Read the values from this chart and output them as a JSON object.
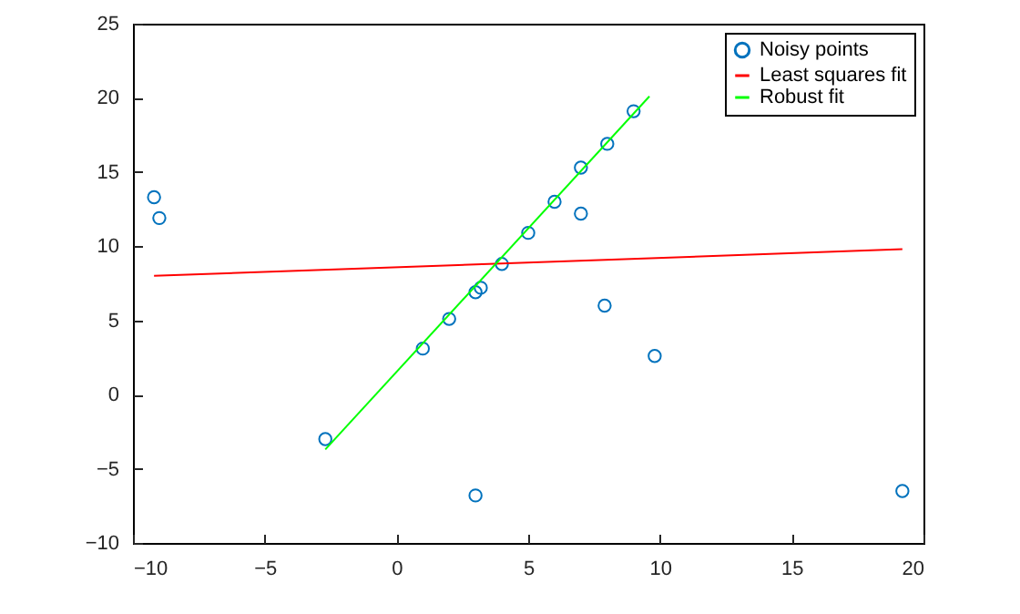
{
  "chart_data": {
    "type": "scatter",
    "xlim": [
      -10,
      20
    ],
    "ylim": [
      -10,
      25
    ],
    "xticks": [
      -10,
      -5,
      0,
      5,
      10,
      15,
      20
    ],
    "yticks": [
      -10,
      -5,
      0,
      5,
      10,
      15,
      20,
      25
    ],
    "grid": false,
    "legend": "top right",
    "series": [
      {
        "name": "Noisy points",
        "marker": "circle",
        "color": "#0072bd",
        "x": [
          -9.2,
          -9.0,
          -2.7,
          1.0,
          2.0,
          3.0,
          3.2,
          4.0,
          5.0,
          6.0,
          7.0,
          7.0,
          8.0,
          9.0,
          7.9,
          9.8,
          3.0,
          19.2
        ],
        "values": [
          13.3,
          11.9,
          -3.0,
          3.1,
          5.1,
          6.9,
          7.2,
          8.8,
          10.9,
          13.0,
          15.3,
          12.2,
          16.9,
          19.1,
          6.0,
          2.6,
          -6.8,
          -6.5
        ]
      },
      {
        "name": "Least squares fit",
        "type": "line",
        "color": "#ff0000",
        "x": [
          -9.2,
          19.2
        ],
        "values": [
          8.0,
          9.8
        ]
      },
      {
        "name": "Robust fit",
        "type": "line",
        "color": "#00ff00",
        "x": [
          -2.7,
          9.6
        ],
        "values": [
          -3.7,
          20.1
        ]
      }
    ]
  }
}
